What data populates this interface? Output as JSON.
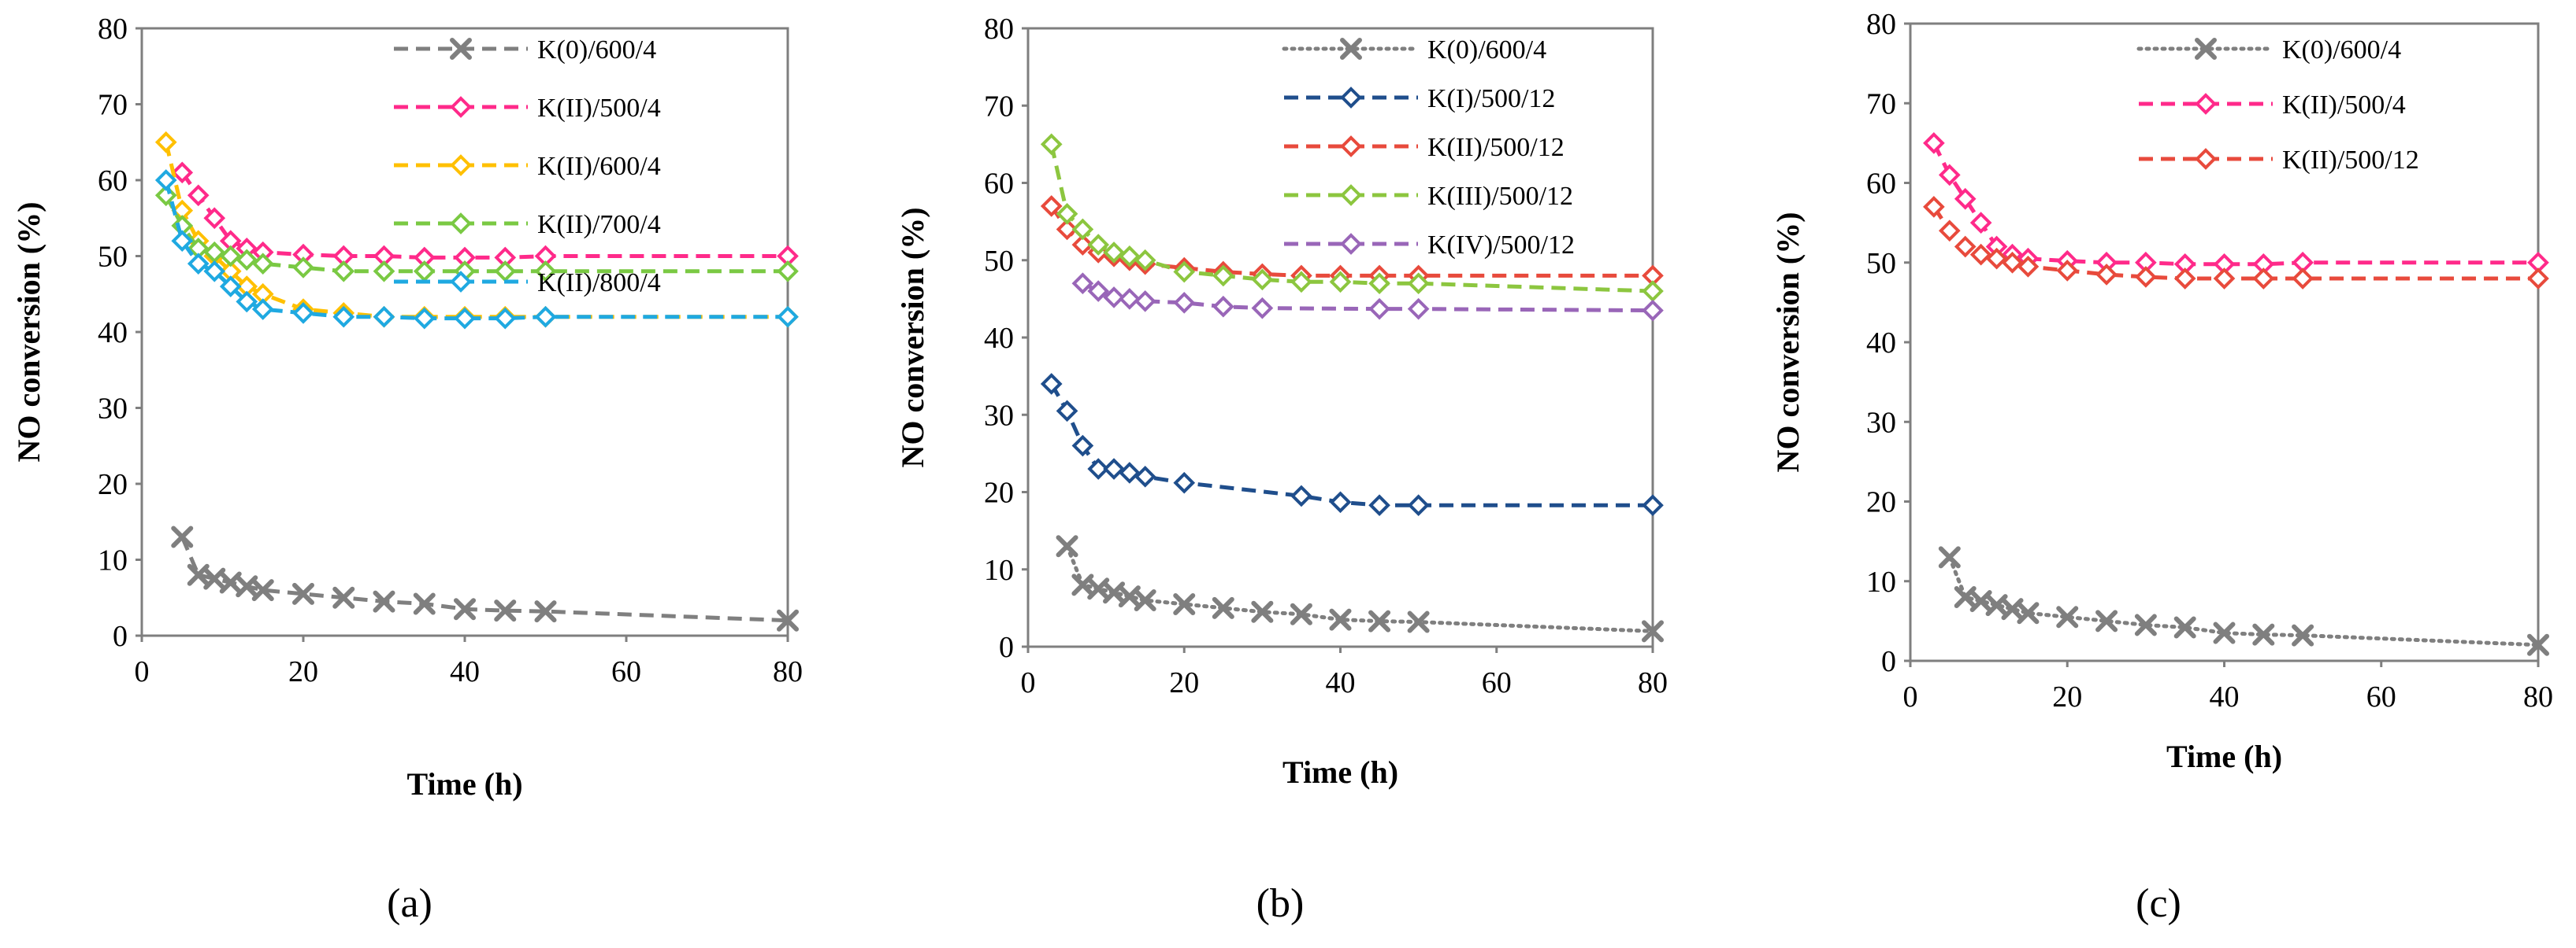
{
  "chart_data": [
    {
      "type": "line",
      "panel_label": "(a)",
      "xlabel": "Time (h)",
      "ylabel": "NO conversion (%)",
      "xlim": [
        0,
        80
      ],
      "ylim": [
        0,
        80
      ],
      "xticks": [
        0,
        20,
        40,
        60,
        80
      ],
      "yticks": [
        0,
        10,
        20,
        30,
        40,
        50,
        60,
        70,
        80
      ],
      "grid": false,
      "legend_position": "top-right",
      "series": [
        {
          "name": "K(0)/600/4",
          "color": "#7f7f7f",
          "marker": "x",
          "dash": "dashed",
          "x": [
            5,
            7,
            9,
            11,
            13,
            15,
            20,
            25,
            30,
            35,
            40,
            45,
            50,
            80
          ],
          "y": [
            13,
            8,
            7.5,
            7,
            6.5,
            6,
            5.5,
            5,
            4.5,
            4.2,
            3.5,
            3.3,
            3.2,
            2
          ]
        },
        {
          "name": "K(II)/500/4",
          "color": "#ff2a8a",
          "marker": "diamond",
          "dash": "dashed",
          "x": [
            5,
            7,
            9,
            11,
            13,
            15,
            20,
            25,
            30,
            35,
            40,
            45,
            50,
            80
          ],
          "y": [
            61,
            58,
            55,
            52,
            51,
            50.5,
            50.2,
            50,
            50,
            49.8,
            49.8,
            49.8,
            50,
            50
          ]
        },
        {
          "name": "K(II)/600/4",
          "color": "#ffc000",
          "marker": "diamond",
          "dash": "dashed",
          "x": [
            3,
            5,
            7,
            9,
            11,
            13,
            15,
            20,
            25,
            30,
            35,
            40,
            45,
            50,
            80
          ],
          "y": [
            65,
            56,
            52,
            50,
            48,
            46,
            45,
            43,
            42.5,
            42,
            42,
            42,
            42,
            42,
            42
          ]
        },
        {
          "name": "K(II)/700/4",
          "color": "#7ac943",
          "marker": "diamond",
          "dash": "dashed",
          "x": [
            3,
            5,
            7,
            9,
            11,
            13,
            15,
            20,
            25,
            30,
            35,
            40,
            45,
            50,
            80
          ],
          "y": [
            58,
            54,
            51,
            50.5,
            50,
            49.5,
            49,
            48.5,
            48,
            48,
            48,
            48,
            48,
            48,
            48
          ]
        },
        {
          "name": "K(II)/800/4",
          "color": "#1fa9e1",
          "marker": "diamond",
          "dash": "dashed",
          "x": [
            3,
            5,
            7,
            9,
            11,
            13,
            15,
            20,
            25,
            30,
            35,
            40,
            45,
            50,
            80
          ],
          "y": [
            60,
            52,
            49,
            48,
            46,
            44,
            43,
            42.5,
            42,
            42,
            41.8,
            41.8,
            41.8,
            42,
            42
          ]
        }
      ]
    },
    {
      "type": "line",
      "panel_label": "(b)",
      "xlabel": "Time  (h)",
      "ylabel": "NO conversion (%)",
      "xlim": [
        0,
        80
      ],
      "ylim": [
        0,
        80
      ],
      "xticks": [
        0,
        20,
        40,
        60,
        80
      ],
      "yticks": [
        0,
        10,
        20,
        30,
        40,
        50,
        60,
        70,
        80
      ],
      "grid": false,
      "legend_position": "top-right",
      "series": [
        {
          "name": "K(0)/600/4",
          "color": "#7f7f7f",
          "marker": "x",
          "dash": "dotted",
          "x": [
            5,
            7,
            9,
            11,
            13,
            15,
            20,
            25,
            30,
            35,
            40,
            45,
            50,
            80
          ],
          "y": [
            13,
            8,
            7.5,
            7,
            6.5,
            6,
            5.5,
            5,
            4.5,
            4.2,
            3.5,
            3.3,
            3.2,
            2
          ]
        },
        {
          "name": "K(I)/500/12",
          "color": "#1f4e8c",
          "marker": "diamond",
          "dash": "dashed",
          "x": [
            3,
            5,
            7,
            9,
            11,
            13,
            15,
            20,
            35,
            40,
            45,
            50,
            80
          ],
          "y": [
            34,
            30.5,
            26,
            23,
            23,
            22.5,
            22,
            21.2,
            19.5,
            18.7,
            18.3,
            18.3,
            18.3
          ]
        },
        {
          "name": "K(II)/500/12",
          "color": "#e84a3c",
          "marker": "diamond",
          "dash": "dashed",
          "x": [
            3,
            5,
            7,
            9,
            11,
            13,
            15,
            20,
            25,
            30,
            35,
            40,
            45,
            50,
            80
          ],
          "y": [
            57,
            54,
            52,
            51,
            50.5,
            50,
            49.5,
            49,
            48.5,
            48.2,
            48,
            48,
            48,
            48,
            48
          ]
        },
        {
          "name": "K(III)/500/12",
          "color": "#8cc63f",
          "marker": "diamond",
          "dash": "dashed",
          "x": [
            3,
            5,
            7,
            9,
            11,
            13,
            15,
            20,
            25,
            30,
            35,
            40,
            45,
            50,
            80
          ],
          "y": [
            65,
            56,
            54,
            52,
            51,
            50.5,
            50,
            48.5,
            48,
            47.5,
            47.2,
            47.2,
            47,
            47,
            46
          ]
        },
        {
          "name": "K(IV)/500/12",
          "color": "#9966b8",
          "marker": "diamond",
          "dash": "dashed",
          "x": [
            7,
            9,
            11,
            13,
            15,
            20,
            25,
            30,
            45,
            50,
            80
          ],
          "y": [
            47,
            46,
            45.2,
            45,
            44.7,
            44.5,
            44,
            43.8,
            43.7,
            43.7,
            43.5
          ]
        }
      ]
    },
    {
      "type": "line",
      "panel_label": "(c)",
      "xlabel": "Time (h)",
      "ylabel": "NO conversion (%)",
      "xlim": [
        0,
        80
      ],
      "ylim": [
        0,
        80
      ],
      "xticks": [
        0,
        20,
        40,
        60,
        80
      ],
      "yticks": [
        0,
        10,
        20,
        30,
        40,
        50,
        60,
        70,
        80
      ],
      "grid": false,
      "legend_position": "top-right",
      "series": [
        {
          "name": "K(0)/600/4",
          "color": "#7f7f7f",
          "marker": "x",
          "dash": "dotted",
          "x": [
            5,
            7,
            9,
            11,
            13,
            15,
            20,
            25,
            30,
            35,
            40,
            45,
            50,
            80
          ],
          "y": [
            13,
            8,
            7.5,
            7,
            6.5,
            6,
            5.5,
            5,
            4.5,
            4.2,
            3.5,
            3.3,
            3.2,
            2
          ]
        },
        {
          "name": "K(II)/500/4",
          "color": "#ff2a8a",
          "marker": "diamond",
          "dash": "dashed",
          "x": [
            3,
            5,
            7,
            9,
            11,
            13,
            15,
            20,
            25,
            30,
            35,
            40,
            45,
            50,
            80
          ],
          "y": [
            65,
            61,
            58,
            55,
            52,
            51,
            50.5,
            50.2,
            50,
            50,
            49.8,
            49.8,
            49.8,
            50,
            50
          ]
        },
        {
          "name": "K(II)/500/12",
          "color": "#e84a3c",
          "marker": "diamond",
          "dash": "dashed",
          "x": [
            3,
            5,
            7,
            9,
            11,
            13,
            15,
            20,
            25,
            30,
            35,
            40,
            45,
            50,
            80
          ],
          "y": [
            57,
            54,
            52,
            51,
            50.5,
            50,
            49.5,
            49,
            48.5,
            48.2,
            48,
            48,
            48,
            48,
            48
          ]
        }
      ]
    }
  ]
}
